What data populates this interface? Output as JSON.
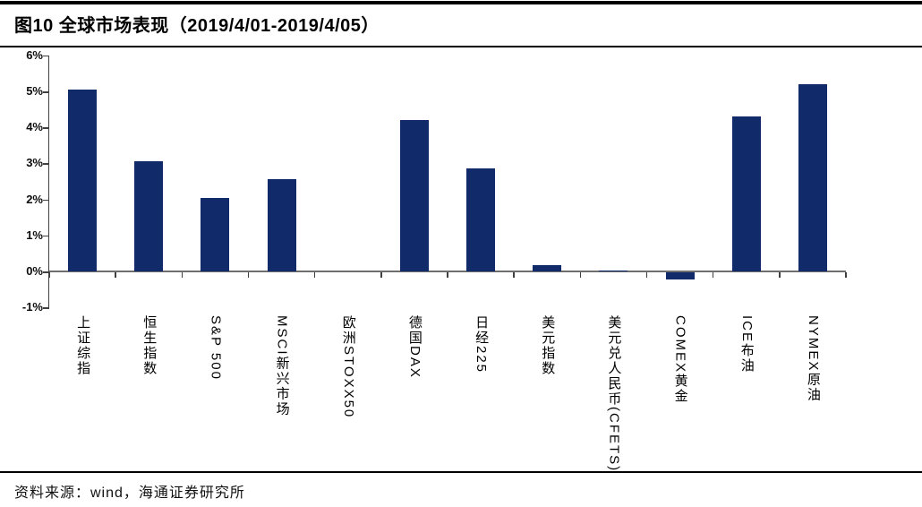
{
  "title": "图10 全球市场表现（2019/4/01-2019/4/05）",
  "source": "资料来源：wind，海通证券研究所",
  "colors": {
    "bar": "#112a6a",
    "axis": "#3f3f3f",
    "zero_line": "#6e6e6e",
    "rule": "#000000",
    "background": "#ffffff"
  },
  "chart_data": {
    "type": "bar",
    "title": "图10 全球市场表现（2019/4/01-2019/4/05）",
    "categories": [
      "上证综指",
      "恒生指数",
      "S&P 500",
      "MSCI新兴市场",
      "欧洲STOXX50",
      "德国DAX",
      "日经225",
      "美元指数",
      "美元兑人民币(CFETS)",
      "COMEX黄金",
      "ICE布油",
      "NYMEX原油"
    ],
    "values": [
      5.05,
      3.05,
      2.05,
      2.55,
      0.0,
      4.2,
      2.85,
      0.17,
      0.03,
      -0.2,
      4.3,
      5.2
    ],
    "unit": "%",
    "xlabel": "",
    "ylabel": "",
    "ylim": [
      -1,
      6
    ],
    "yticks": [
      6,
      5,
      4,
      3,
      2,
      1,
      0,
      -1
    ],
    "ytick_labels": [
      "6%",
      "5%",
      "4%",
      "3%",
      "2%",
      "1%",
      "0%",
      "-1%"
    ],
    "grid": false,
    "legend_position": "none"
  }
}
